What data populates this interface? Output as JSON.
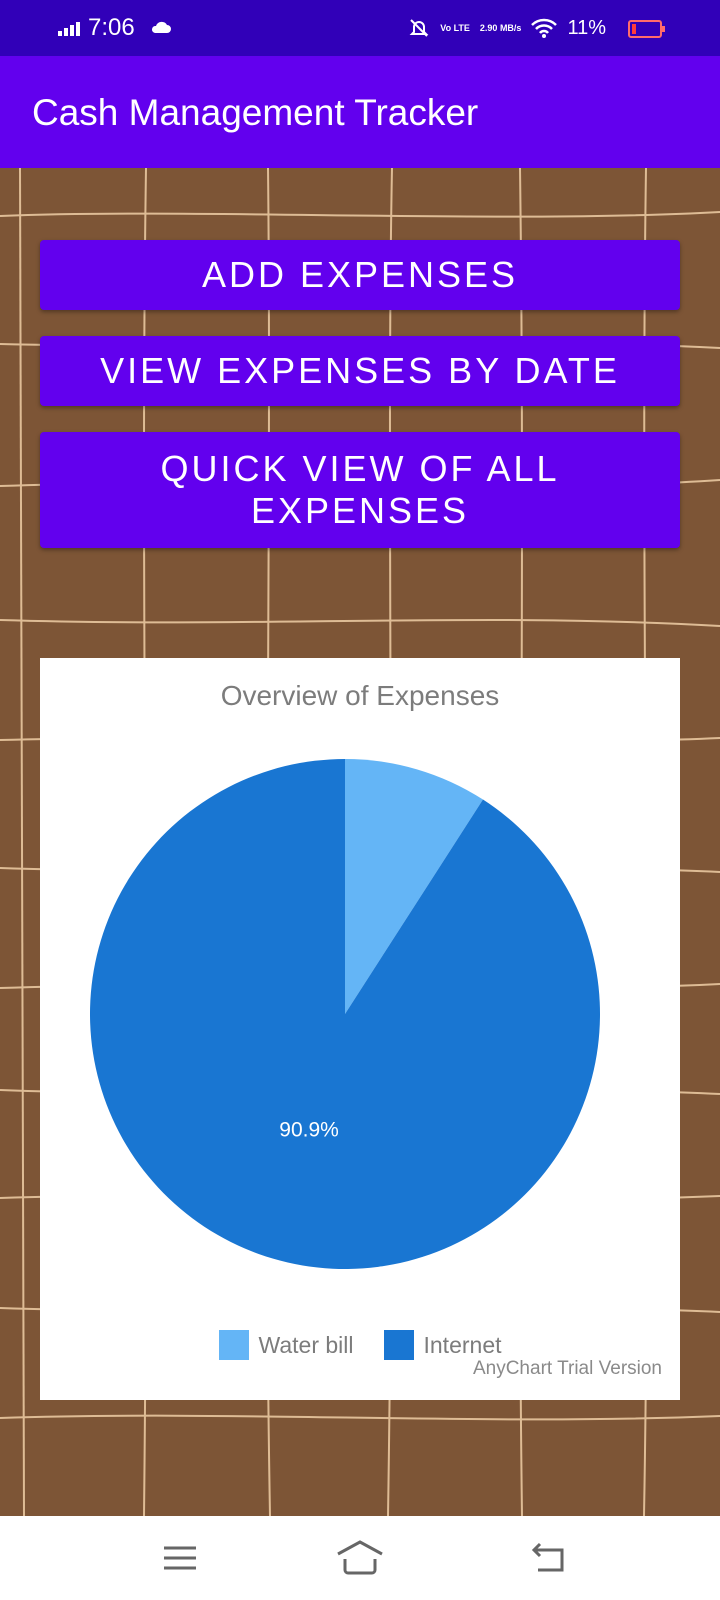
{
  "status_bar": {
    "time": "7:06",
    "net_lines": [
      "Vo LTE",
      "2.90 MB/s"
    ],
    "battery_percent": "11%",
    "icons": [
      "signal-icon",
      "cloud-icon",
      "mute-icon",
      "volte-icon",
      "wifi-icon",
      "battery-icon"
    ]
  },
  "app_bar": {
    "title": "Cash Management Tracker"
  },
  "buttons": {
    "add_expenses": "ADD EXPENSES",
    "view_by_date": "VIEW EXPENSES BY DATE",
    "quick_view": "QUICK VIEW OF ALL EXPENSES"
  },
  "chart_data": {
    "type": "pie",
    "title": "Overview of Expenses",
    "categories": [
      "Water bill",
      "Internet"
    ],
    "values": [
      9.1,
      90.9
    ],
    "labels": [
      "",
      "90.9%"
    ],
    "colors": [
      "#64b5f6",
      "#1976d2"
    ],
    "legend_position": "bottom",
    "credit": "AnyChart Trial Version"
  },
  "colors": {
    "app_bar": "#6200ee",
    "status_bar": "#3100b8",
    "background": "#7d5536"
  },
  "nav_bar": {
    "icons": [
      "menu-icon",
      "home-icon",
      "back-icon"
    ]
  }
}
